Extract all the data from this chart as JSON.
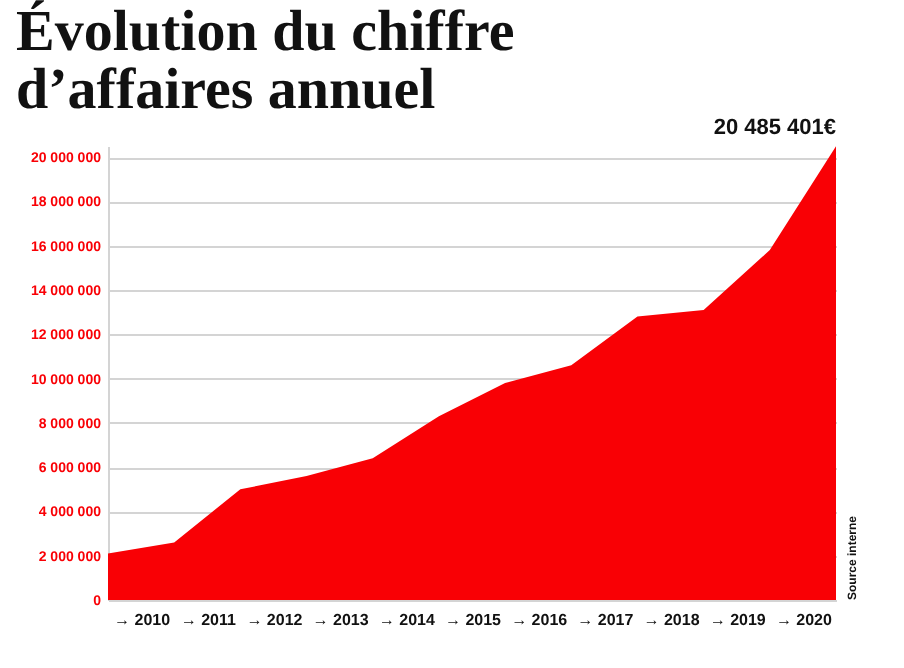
{
  "chart_data": {
    "type": "area",
    "title": "Évolution du chiffre d’affaires annuel",
    "x": [
      2010,
      2011,
      2012,
      2013,
      2014,
      2015,
      2016,
      2017,
      2018,
      2019,
      2020,
      2021
    ],
    "values": [
      2100000,
      2600000,
      5000000,
      5600000,
      6400000,
      8300000,
      9800000,
      10600000,
      12800000,
      13100000,
      15800000,
      20485401
    ],
    "value_labels": [
      null,
      null,
      null,
      null,
      null,
      null,
      null,
      null,
      null,
      null,
      null,
      "20 485 401€"
    ],
    "color": "#f90005",
    "xlim": [
      2010,
      2021
    ],
    "xticks": [
      {
        "value": 2010.5,
        "label": "→ 2010"
      },
      {
        "value": 2011.5,
        "label": "→ 2011"
      },
      {
        "value": 2012.5,
        "label": "→ 2012"
      },
      {
        "value": 2013.5,
        "label": "→ 2013"
      },
      {
        "value": 2014.5,
        "label": "→ 2014"
      },
      {
        "value": 2015.5,
        "label": "→ 2015"
      },
      {
        "value": 2016.5,
        "label": "→ 2016"
      },
      {
        "value": 2017.5,
        "label": "→ 2017"
      },
      {
        "value": 2018.5,
        "label": "→ 2018"
      },
      {
        "value": 2019.5,
        "label": "→ 2019"
      },
      {
        "value": 2020.5,
        "label": "→ 2020"
      }
    ],
    "ylim": [
      0,
      20500000
    ],
    "yticks": [
      0,
      {
        "value": 2000000,
        "label": "2 000 000"
      },
      {
        "value": 4000000,
        "label": "4 000 000"
      },
      {
        "value": 6000000,
        "label": "6 000 000"
      },
      {
        "value": 8000000,
        "label": "8 000 000"
      },
      {
        "value": 10000000,
        "label": "10 000 000"
      },
      {
        "value": 12000000,
        "label": "12 000 000"
      },
      {
        "value": 14000000,
        "label": "14 000 000"
      },
      {
        "value": 16000000,
        "label": "16 000 000"
      },
      {
        "value": 18000000,
        "label": "18 000 000"
      },
      {
        "value": 20000000,
        "label": "20 000 000"
      }
    ],
    "grid": "y",
    "annotations": [
      "Source interne"
    ]
  }
}
